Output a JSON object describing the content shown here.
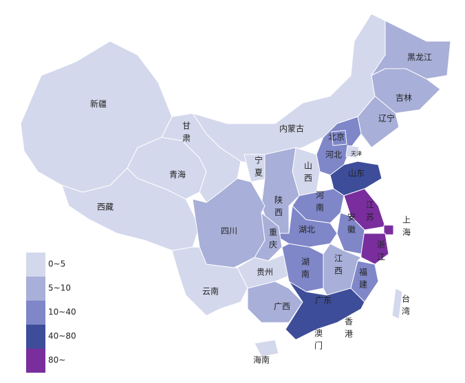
{
  "map": {
    "legend": [
      {
        "label": "0~5",
        "color": "#d4d8ec"
      },
      {
        "label": "5~10",
        "color": "#a8afd8"
      },
      {
        "label": "10~40",
        "color": "#7f87c8"
      },
      {
        "label": "40~80",
        "color": "#3d4d99"
      },
      {
        "label": "80~",
        "color": "#7a2e9e"
      }
    ],
    "regions": [
      {
        "name": "新疆",
        "color": "#d4d8ec"
      },
      {
        "name": "西藏",
        "color": "#d4d8ec"
      },
      {
        "name": "青海",
        "color": "#d4d8ec"
      },
      {
        "name": "甘肃",
        "color": "#d4d8ec"
      },
      {
        "name": "内蒙古",
        "color": "#d4d8ec"
      },
      {
        "name": "黑龙江",
        "color": "#a8afd8"
      },
      {
        "name": "吉林",
        "color": "#a8afd8"
      },
      {
        "name": "辽宁",
        "color": "#a8afd8"
      },
      {
        "name": "河北",
        "color": "#7f87c8"
      },
      {
        "name": "北京",
        "color": "#7f87c8"
      },
      {
        "name": "天津",
        "color": "#d4d8ec"
      },
      {
        "name": "山西",
        "color": "#d4d8ec"
      },
      {
        "name": "山东",
        "color": "#3d4d99"
      },
      {
        "name": "宁夏",
        "color": "#d4d8ec"
      },
      {
        "name": "陕西",
        "color": "#a8afd8"
      },
      {
        "name": "河南",
        "color": "#7f87c8"
      },
      {
        "name": "江苏",
        "color": "#7a2e9e"
      },
      {
        "name": "上海",
        "color": "#7a2e9e"
      },
      {
        "name": "浙江",
        "color": "#7a2e9e"
      },
      {
        "name": "安徽",
        "color": "#7f87c8"
      },
      {
        "name": "湖北",
        "color": "#7f87c8"
      },
      {
        "name": "四川",
        "color": "#a8afd8"
      },
      {
        "name": "重庆",
        "color": "#a8afd8"
      },
      {
        "name": "贵州",
        "color": "#d4d8ec"
      },
      {
        "name": "云南",
        "color": "#d4d8ec"
      },
      {
        "name": "湖南",
        "color": "#7f87c8"
      },
      {
        "name": "江西",
        "color": "#a8afd8"
      },
      {
        "name": "福建",
        "color": "#7f87c8"
      },
      {
        "name": "广西",
        "color": "#a8afd8"
      },
      {
        "name": "广东",
        "color": "#3d4d99"
      },
      {
        "name": "海南",
        "color": "#d4d8ec"
      },
      {
        "name": "台湾",
        "color": "#d4d8ec"
      }
    ],
    "labels": [
      "香港",
      "澳门"
    ]
  }
}
